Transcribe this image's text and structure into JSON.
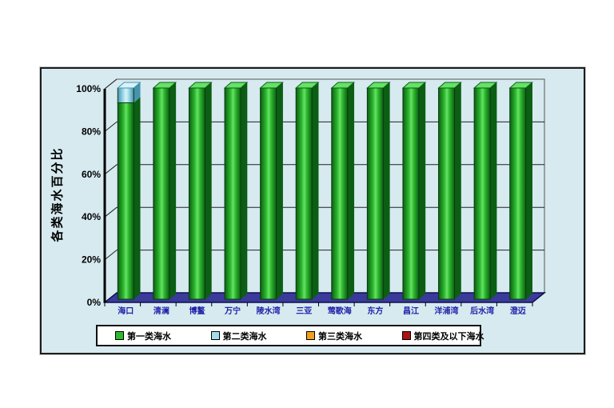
{
  "frame": {
    "background": "#d6eaf0",
    "border_color": "#1c1c1c"
  },
  "y_axis": {
    "title": "各类海水百分比",
    "tick_labels": [
      "0%",
      "20%",
      "40%",
      "60%",
      "80%",
      "100%"
    ]
  },
  "legend": {
    "position": "bottom",
    "items": [
      {
        "label": "第一类海水",
        "color": "#2eb82e"
      },
      {
        "label": "第二类海水",
        "color": "#a5dcec"
      },
      {
        "label": "第三类海水",
        "color": "#f0a020"
      },
      {
        "label": "第四类及以下海水",
        "color": "#aa1414"
      }
    ]
  },
  "chart_data": {
    "type": "bar",
    "subtype": "3d-stacked-percent-column",
    "title": "",
    "xlabel": "",
    "ylabel": "各类海水百分比",
    "ylim": [
      0,
      100
    ],
    "grid": true,
    "legend_position": "bottom",
    "y_ticks": [
      0,
      20,
      40,
      60,
      80,
      100
    ],
    "y_tick_labels": [
      "0%",
      "20%",
      "40%",
      "60%",
      "80%",
      "100%"
    ],
    "categories": [
      "海口",
      "清澜",
      "博鳌",
      "万宁",
      "陵水湾",
      "三亚",
      "莺歌海",
      "东方",
      "昌江",
      "洋浦湾",
      "后水湾",
      "澄迈"
    ],
    "series": [
      {
        "name": "第一类海水",
        "color": "#2eb82e",
        "color_light": "#66e266",
        "color_dark": "#0b5e13",
        "values": [
          93,
          100,
          100,
          100,
          100,
          100,
          100,
          100,
          100,
          100,
          100,
          100
        ]
      },
      {
        "name": "第二类海水",
        "color": "#a5dcec",
        "color_light": "#d8f3fa",
        "color_dark": "#4593ad",
        "values": [
          7,
          0,
          0,
          0,
          0,
          0,
          0,
          0,
          0,
          0,
          0,
          0
        ]
      },
      {
        "name": "第三类海水",
        "color": "#f0a020",
        "color_light": "#ffd060",
        "color_dark": "#9a6206",
        "values": [
          0,
          0,
          0,
          0,
          0,
          0,
          0,
          0,
          0,
          0,
          0,
          0
        ]
      },
      {
        "name": "第四类及以下海水",
        "color": "#aa1414",
        "color_light": "#d06060",
        "color_dark": "#5e0b0b",
        "values": [
          0,
          0,
          0,
          0,
          0,
          0,
          0,
          0,
          0,
          0,
          0,
          0
        ]
      }
    ],
    "floor_color": "#3a3a9a",
    "label_color": "#2121a8"
  }
}
